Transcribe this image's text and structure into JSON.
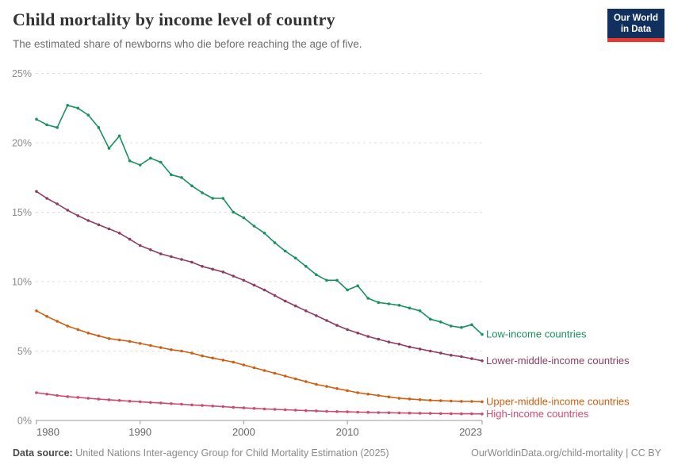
{
  "header": {
    "title": "Child mortality by income level of country",
    "subtitle": "The estimated share of newborns who die before reaching the age of five.",
    "logo": {
      "line1": "Our World",
      "line2": "in Data",
      "bg_color": "#12305E",
      "accent_color": "#E5392F"
    }
  },
  "footer": {
    "source_label": "Data source:",
    "source_text": " United Nations Inter-agency Group for Child Mortality Estimation (2025)",
    "attribution": "OurWorldinData.org/child-mortality | CC BY"
  },
  "chart_data": {
    "type": "line",
    "title": "Child mortality by income level of country",
    "xlabel": "",
    "ylabel": "",
    "xlim": [
      1980,
      2023
    ],
    "ylim": [
      0,
      25
    ],
    "grid": "horizontal-dashed",
    "legend_position": "end-of-line labels, right of last point",
    "y_ticks": [
      {
        "value": 0,
        "label": "0%"
      },
      {
        "value": 5,
        "label": "5%"
      },
      {
        "value": 10,
        "label": "10%"
      },
      {
        "value": 15,
        "label": "15%"
      },
      {
        "value": 20,
        "label": "20%"
      },
      {
        "value": 25,
        "label": "25%"
      }
    ],
    "x_ticks": [
      {
        "year": 1980,
        "label": "1980"
      },
      {
        "year": 1990,
        "label": "1990"
      },
      {
        "year": 2000,
        "label": "2000"
      },
      {
        "year": 2010,
        "label": "2010"
      },
      {
        "year": 2023,
        "label": "2023"
      }
    ],
    "x_years": [
      1980,
      1981,
      1982,
      1983,
      1984,
      1985,
      1986,
      1987,
      1988,
      1989,
      1990,
      1991,
      1992,
      1993,
      1994,
      1995,
      1996,
      1997,
      1998,
      1999,
      2000,
      2001,
      2002,
      2003,
      2004,
      2005,
      2006,
      2007,
      2008,
      2009,
      2010,
      2011,
      2012,
      2013,
      2014,
      2015,
      2016,
      2017,
      2018,
      2019,
      2020,
      2021,
      2022,
      2023
    ],
    "unit": "%",
    "series": [
      {
        "name": "Low-income countries",
        "color": "#18915E",
        "values": [
          21.7,
          21.3,
          21.1,
          22.7,
          22.5,
          22.0,
          21.1,
          19.6,
          20.5,
          18.7,
          18.4,
          18.9,
          18.6,
          17.7,
          17.5,
          16.9,
          16.4,
          16.0,
          16.0,
          15.0,
          14.6,
          14.0,
          13.5,
          12.8,
          12.2,
          11.7,
          11.1,
          10.5,
          10.1,
          10.1,
          9.4,
          9.7,
          8.8,
          8.5,
          8.4,
          8.3,
          8.1,
          7.9,
          7.3,
          7.1,
          6.8,
          6.7,
          6.9,
          6.2
        ]
      },
      {
        "name": "Lower-middle-income countries",
        "color": "#8E3C63",
        "values": [
          16.5,
          16.0,
          15.6,
          15.15,
          14.75,
          14.4,
          14.1,
          13.8,
          13.5,
          13.05,
          12.6,
          12.3,
          12.0,
          11.8,
          11.6,
          11.4,
          11.1,
          10.9,
          10.7,
          10.4,
          10.1,
          9.75,
          9.4,
          9.0,
          8.6,
          8.25,
          7.9,
          7.55,
          7.2,
          6.85,
          6.55,
          6.3,
          6.05,
          5.85,
          5.65,
          5.5,
          5.3,
          5.15,
          5.0,
          4.85,
          4.7,
          4.6,
          4.45,
          4.3
        ]
      },
      {
        "name": "Upper-middle-income countries",
        "color": "#CE5F13",
        "values": [
          7.9,
          7.5,
          7.15,
          6.8,
          6.55,
          6.3,
          6.1,
          5.9,
          5.8,
          5.7,
          5.55,
          5.4,
          5.25,
          5.1,
          5.0,
          4.85,
          4.65,
          4.5,
          4.35,
          4.2,
          4.0,
          3.8,
          3.6,
          3.4,
          3.2,
          3.0,
          2.8,
          2.6,
          2.45,
          2.3,
          2.15,
          2.0,
          1.9,
          1.8,
          1.7,
          1.6,
          1.55,
          1.5,
          1.45,
          1.42,
          1.4,
          1.38,
          1.37,
          1.35
        ]
      },
      {
        "name": "High-income countries",
        "color": "#CE4A6F",
        "values": [
          2.0,
          1.9,
          1.8,
          1.72,
          1.66,
          1.6,
          1.54,
          1.49,
          1.44,
          1.39,
          1.35,
          1.3,
          1.26,
          1.21,
          1.17,
          1.12,
          1.08,
          1.04,
          1.0,
          0.95,
          0.91,
          0.87,
          0.83,
          0.8,
          0.77,
          0.74,
          0.71,
          0.69,
          0.66,
          0.64,
          0.62,
          0.6,
          0.59,
          0.57,
          0.56,
          0.54,
          0.53,
          0.52,
          0.51,
          0.5,
          0.49,
          0.48,
          0.48,
          0.47
        ]
      }
    ]
  }
}
